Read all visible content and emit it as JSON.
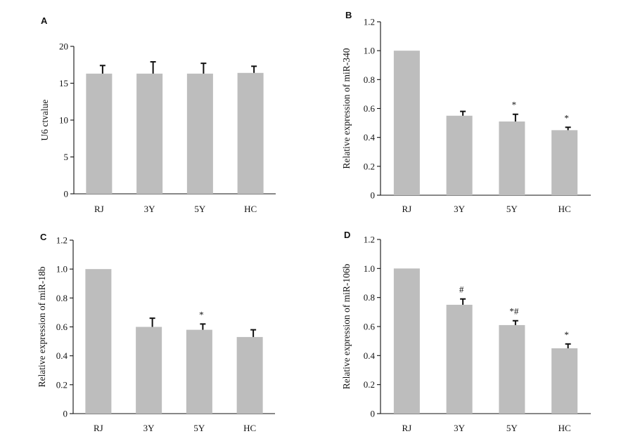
{
  "chart_data": [
    {
      "panel": "A",
      "type": "bar",
      "ylabel": "U6 ctvalue",
      "categories": [
        "RJ",
        "3Y",
        "5Y",
        "HC"
      ],
      "values": [
        16.3,
        16.3,
        16.3,
        16.4
      ],
      "errors": [
        1.1,
        1.6,
        1.4,
        0.9
      ],
      "annotations": [
        "",
        "",
        "",
        ""
      ],
      "ylim": [
        0,
        20
      ],
      "yticks": [
        0,
        5,
        10,
        15,
        20
      ],
      "ytick_labels": [
        "0",
        "5",
        "10",
        "15",
        "20"
      ]
    },
    {
      "panel": "B",
      "type": "bar",
      "ylabel": "Relative expression of miR-340",
      "categories": [
        "RJ",
        "3Y",
        "5Y",
        "HC"
      ],
      "values": [
        1.0,
        0.55,
        0.51,
        0.45
      ],
      "errors": [
        0,
        0.03,
        0.05,
        0.02
      ],
      "annotations": [
        "",
        "",
        "*",
        "*"
      ],
      "ylim": [
        0,
        1.2
      ],
      "yticks": [
        0,
        0.2,
        0.4,
        0.6,
        0.8,
        1.0,
        1.2
      ],
      "ytick_labels": [
        "0",
        "0.2",
        "0.4",
        "0.6",
        "0.8",
        "1.0",
        "1.2"
      ]
    },
    {
      "panel": "C",
      "type": "bar",
      "ylabel": "Relative expression of miR-18b",
      "categories": [
        "RJ",
        "3Y",
        "5Y",
        "HC"
      ],
      "values": [
        1.0,
        0.6,
        0.58,
        0.53
      ],
      "errors": [
        0,
        0.06,
        0.04,
        0.05
      ],
      "annotations": [
        "",
        "",
        "*",
        ""
      ],
      "ylim": [
        0,
        1.2
      ],
      "yticks": [
        0,
        0.2,
        0.4,
        0.6,
        0.8,
        1.0,
        1.2
      ],
      "ytick_labels": [
        "0",
        "0.2",
        "0.4",
        "0.6",
        "0.8",
        "1.0",
        "1.2"
      ]
    },
    {
      "panel": "D",
      "type": "bar",
      "ylabel": "Relative expression of miR-106b",
      "categories": [
        "RJ",
        "3Y",
        "5Y",
        "HC"
      ],
      "values": [
        1.0,
        0.75,
        0.61,
        0.45
      ],
      "errors": [
        0,
        0.04,
        0.03,
        0.03
      ],
      "annotations": [
        "",
        "#",
        "*#",
        "*"
      ],
      "ylim": [
        0,
        1.2
      ],
      "yticks": [
        0,
        0.2,
        0.4,
        0.6,
        0.8,
        1.0,
        1.2
      ],
      "ytick_labels": [
        "0",
        "0.2",
        "0.4",
        "0.6",
        "0.8",
        "1.0",
        "1.2"
      ]
    }
  ]
}
